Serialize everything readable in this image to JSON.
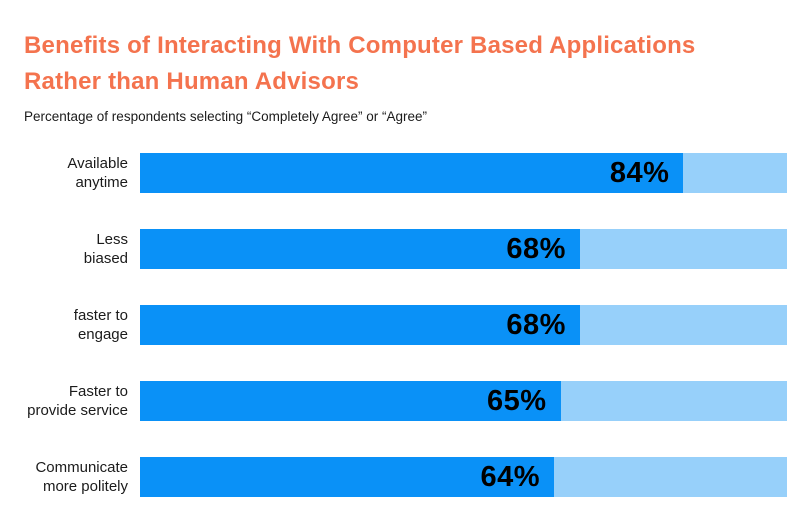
{
  "header": {
    "title": "Benefits of Interacting With Computer Based Applications Rather than Human Advisors",
    "title_lines": [
      "Benefits of Interacting With Computer Based Applications",
      "Rather than Human Advisors"
    ],
    "subtitle": "Percentage of respondents selecting “Completely Agree” or “Agree”"
  },
  "chart_data": {
    "type": "bar",
    "orientation": "horizontal",
    "title": "Benefits of Interacting With Computer Based Applications Rather than Human Advisors",
    "subtitle": "Percentage of respondents selecting “Completely Agree” or “Agree”",
    "categories": [
      "Available anytime",
      "Less biased",
      "faster to engage",
      "Faster to provide service",
      "Communicate more politely"
    ],
    "label_lines": [
      [
        "Available",
        "anytime"
      ],
      [
        "Less",
        "biased"
      ],
      [
        "faster to",
        "engage"
      ],
      [
        "Faster to",
        "provide service"
      ],
      [
        "Communicate",
        "more politely"
      ]
    ],
    "values": [
      84,
      68,
      68,
      65,
      64
    ],
    "value_labels": [
      "84%",
      "68%",
      "68%",
      "65%",
      "64%"
    ],
    "xlim": [
      0,
      100
    ],
    "grid": false,
    "legend": "none",
    "axis_labels": "none",
    "colors": {
      "bar_fill": "#0a91f7",
      "bar_track": "#97d0fa",
      "title": "#f4734e",
      "label_text": "#1b1b1b",
      "value_text": "#000000"
    }
  }
}
